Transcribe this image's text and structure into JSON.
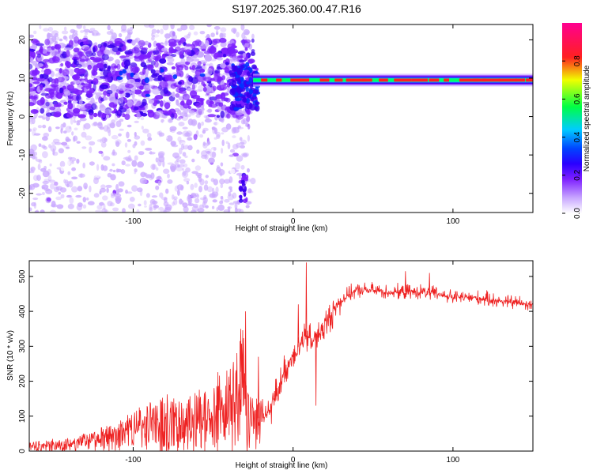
{
  "figure": {
    "title": "S197.2025.360.00.47.R16"
  },
  "chart_data": [
    {
      "type": "heatmap",
      "title": "S197.2025.360.00.47.R16",
      "xlabel": "Height of straight line (km)",
      "ylabel": "Frequency (Hz)",
      "xlim": [
        -165,
        150
      ],
      "ylim": [
        -25,
        24
      ],
      "xticks": [
        -100,
        0,
        100
      ],
      "yticks": [
        -20,
        -10,
        0,
        10,
        20
      ],
      "grid": false,
      "colorbar": {
        "label": "Normalized spectral amplitude",
        "range": [
          0.0,
          1.0
        ],
        "ticks": [
          0.0,
          0.2,
          0.4,
          0.6,
          0.8
        ],
        "tick_labels": [
          "0.0",
          "0.2",
          "0.4",
          "0.6",
          "0.8"
        ],
        "colormap": [
          "#ffffff",
          "#c9a8ff",
          "#7d1fff",
          "#3a00f0",
          "#0033ff",
          "#00ccff",
          "#00ff66",
          "#ffee00",
          "#ff2020",
          "#ff0080"
        ]
      },
      "features": [
        {
          "name": "scattered noise",
          "x_range": [
            -165,
            -25
          ],
          "y_range": [
            -25,
            24
          ],
          "level": 0.1
        },
        {
          "name": "dense band",
          "x_range": [
            -165,
            -25
          ],
          "y_range": [
            0,
            20
          ],
          "level": 0.3
        },
        {
          "name": "transition",
          "x_range": [
            -38,
            -22
          ],
          "y_range": [
            2,
            13
          ],
          "level": 0.4
        },
        {
          "name": "isolated streak",
          "x_range": [
            -33,
            -29
          ],
          "y_range": [
            -22,
            -15
          ],
          "level": 0.25
        },
        {
          "name": "narrow tone",
          "x_range": [
            -25,
            150
          ],
          "y": 9.5,
          "level": 0.9
        }
      ]
    },
    {
      "type": "line",
      "xlabel": "Height of straight line (km)",
      "ylabel": "SNR (10 * v/v)",
      "xlim": [
        -165,
        150
      ],
      "ylim": [
        0,
        545
      ],
      "xticks": [
        -100,
        0,
        100
      ],
      "yticks": [
        0,
        100,
        200,
        300,
        400,
        500
      ],
      "grid": false,
      "color": "#ee2222",
      "x": [
        -165,
        -150,
        -140,
        -130,
        -120,
        -110,
        -100,
        -90,
        -80,
        -70,
        -60,
        -50,
        -40,
        -35,
        -32,
        -30,
        -28,
        -25,
        -20,
        -15,
        -10,
        -5,
        0,
        5,
        8,
        10,
        12,
        14,
        16,
        20,
        25,
        30,
        35,
        40,
        50,
        60,
        70,
        80,
        90,
        100,
        110,
        120,
        130,
        140,
        150
      ],
      "y": [
        15,
        18,
        22,
        28,
        38,
        50,
        65,
        75,
        85,
        90,
        100,
        110,
        140,
        180,
        250,
        150,
        120,
        100,
        90,
        110,
        170,
        230,
        280,
        310,
        320,
        330,
        300,
        340,
        330,
        360,
        400,
        430,
        450,
        460,
        460,
        455,
        455,
        455,
        450,
        440,
        440,
        435,
        430,
        425,
        420
      ],
      "spikes": [
        {
          "x": 8,
          "y": 540
        },
        {
          "x": 3,
          "y": 420
        },
        {
          "x": -30,
          "y": 400
        },
        {
          "x": -33,
          "y": 350
        },
        {
          "x": 14,
          "y": 130
        },
        {
          "x": -22,
          "y": 270
        },
        {
          "x": 70,
          "y": 515
        },
        {
          "x": 85,
          "y": 510
        }
      ]
    }
  ]
}
